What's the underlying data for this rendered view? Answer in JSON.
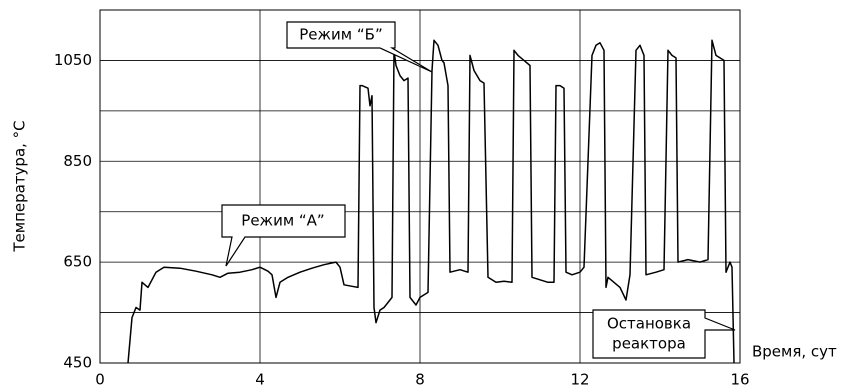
{
  "chart_data": {
    "type": "line",
    "y_label": "Температура, °C",
    "x_label": "Время, сут",
    "xlim": [
      0,
      16
    ],
    "xticks": [
      0,
      4,
      8,
      12,
      16
    ],
    "ylim": [
      450,
      1150
    ],
    "yticks": [
      450,
      650,
      850,
      1050
    ],
    "ygrid_minor": [
      550,
      750,
      950
    ],
    "grid": true,
    "color": "#000000",
    "annotations": [
      "Режим “А”",
      "Режим “Б”",
      "Остановка",
      "реактора"
    ],
    "x": [
      0.7,
      0.8,
      0.9,
      1.0,
      1.05,
      1.2,
      1.4,
      1.6,
      2.0,
      2.4,
      2.8,
      3.0,
      3.2,
      3.5,
      3.8,
      4.0,
      4.2,
      4.3,
      4.4,
      4.5,
      4.7,
      5.0,
      5.3,
      5.6,
      5.9,
      6.0,
      6.1,
      6.3,
      6.45,
      6.5,
      6.55,
      6.7,
      6.75,
      6.8,
      6.85,
      6.9,
      7.0,
      7.1,
      7.2,
      7.3,
      7.35,
      7.4,
      7.5,
      7.6,
      7.7,
      7.75,
      7.9,
      8.0,
      8.2,
      8.3,
      8.35,
      8.45,
      8.55,
      8.6,
      8.7,
      8.75,
      9.0,
      9.2,
      9.25,
      9.35,
      9.5,
      9.6,
      9.7,
      9.9,
      10.1,
      10.3,
      10.35,
      10.45,
      10.6,
      10.75,
      10.8,
      11.0,
      11.2,
      11.35,
      11.4,
      11.5,
      11.6,
      11.65,
      11.8,
      12.0,
      12.1,
      12.3,
      12.4,
      12.5,
      12.6,
      12.65,
      12.7,
      13.0,
      13.15,
      13.25,
      13.4,
      13.5,
      13.6,
      13.65,
      13.9,
      14.1,
      14.2,
      14.3,
      14.4,
      14.45,
      14.7,
      15.0,
      15.2,
      15.3,
      15.4,
      15.5,
      15.6,
      15.65,
      15.75,
      15.8,
      15.85
    ],
    "values": [
      450,
      540,
      560,
      555,
      610,
      600,
      630,
      640,
      638,
      632,
      625,
      620,
      628,
      630,
      635,
      640,
      632,
      625,
      580,
      610,
      620,
      630,
      638,
      645,
      650,
      640,
      605,
      602,
      600,
      1000,
      1000,
      995,
      960,
      980,
      560,
      530,
      555,
      560,
      570,
      580,
      1070,
      1040,
      1020,
      1010,
      1015,
      580,
      565,
      580,
      590,
      1030,
      1090,
      1080,
      1050,
      1045,
      1000,
      630,
      635,
      630,
      1060,
      1030,
      1010,
      1005,
      620,
      610,
      612,
      610,
      1070,
      1060,
      1050,
      1040,
      620,
      615,
      610,
      610,
      1000,
      1000,
      995,
      630,
      625,
      630,
      640,
      1060,
      1080,
      1085,
      1070,
      600,
      620,
      600,
      575,
      625,
      1070,
      1080,
      1060,
      625,
      630,
      635,
      1070,
      1060,
      1055,
      650,
      655,
      650,
      655,
      1090,
      1060,
      1055,
      1050,
      630,
      650,
      640,
      450
    ]
  }
}
